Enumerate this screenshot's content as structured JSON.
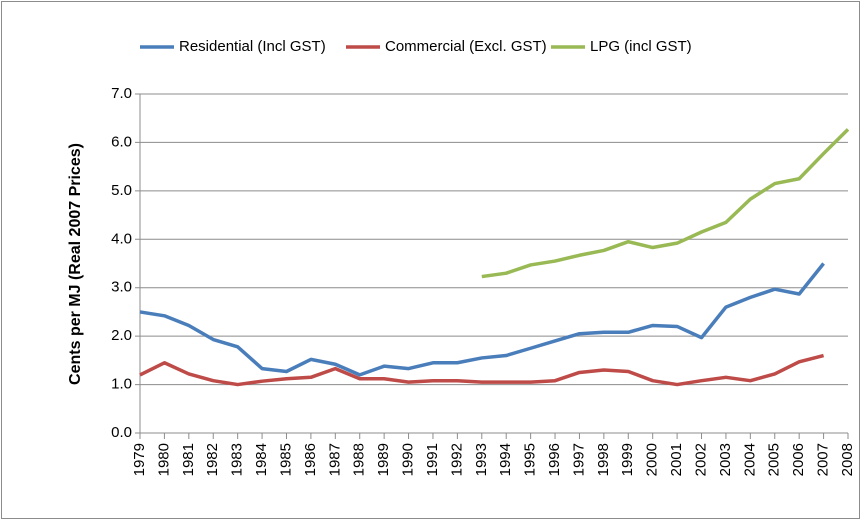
{
  "chart_data": {
    "type": "line",
    "y_label": "Cents per MJ (Real 2007 Prices)",
    "categories": [
      "1979",
      "1980",
      "1981",
      "1982",
      "1983",
      "1984",
      "1985",
      "1986",
      "1987",
      "1988",
      "1989",
      "1990",
      "1991",
      "1992",
      "1993",
      "1994",
      "1995",
      "1996",
      "1997",
      "1998",
      "1999",
      "2000",
      "2001",
      "2002",
      "2003",
      "2004",
      "2005",
      "2006",
      "2007",
      "2008"
    ],
    "series": [
      {
        "name": "Residential (Incl GST)",
        "color": "#4a7ebb",
        "values": [
          2.5,
          2.42,
          2.22,
          1.93,
          1.78,
          1.33,
          1.27,
          1.52,
          1.42,
          1.2,
          1.38,
          1.33,
          1.45,
          1.45,
          1.55,
          1.6,
          1.75,
          1.9,
          2.05,
          2.08,
          2.08,
          2.22,
          2.2,
          1.97,
          2.6,
          2.8,
          2.97,
          2.87,
          3.5,
          null
        ]
      },
      {
        "name": "Commercial (Excl. GST)",
        "color": "#be4b48",
        "values": [
          1.2,
          1.45,
          1.22,
          1.08,
          1.0,
          1.07,
          1.12,
          1.15,
          1.33,
          1.12,
          1.12,
          1.05,
          1.08,
          1.08,
          1.05,
          1.05,
          1.05,
          1.08,
          1.25,
          1.3,
          1.27,
          1.08,
          1.0,
          1.08,
          1.15,
          1.08,
          1.22,
          1.47,
          1.6,
          null
        ]
      },
      {
        "name": "LPG (incl GST)",
        "color": "#98b954",
        "values": [
          null,
          null,
          null,
          null,
          null,
          null,
          null,
          null,
          null,
          null,
          null,
          null,
          null,
          null,
          3.23,
          3.3,
          3.47,
          3.55,
          3.67,
          3.77,
          3.95,
          3.83,
          3.92,
          4.15,
          4.35,
          4.83,
          5.15,
          5.25,
          5.77,
          6.27
        ]
      }
    ],
    "ylim": [
      0,
      7
    ],
    "yticks": [
      {
        "value": 0,
        "label": "0.0"
      },
      {
        "value": 1,
        "label": "1.0"
      },
      {
        "value": 2,
        "label": "2.0"
      },
      {
        "value": 3,
        "label": "3.0"
      },
      {
        "value": 4,
        "label": "4.0"
      },
      {
        "value": 5,
        "label": "5.0"
      },
      {
        "value": 6,
        "label": "6.0"
      },
      {
        "value": 7,
        "label": "7.0"
      }
    ],
    "grid": true,
    "legend": "top"
  }
}
